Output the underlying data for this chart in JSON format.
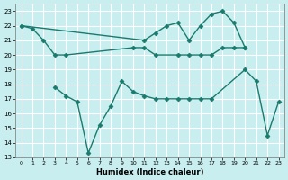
{
  "xlabel": "Humidex (Indice chaleur)",
  "color": "#1a7a6e",
  "bg_color": "#c8eef0",
  "grid_color": "#ffffff",
  "ylim": [
    13,
    23.5
  ],
  "xlim": [
    -0.5,
    23.5
  ],
  "yticks": [
    13,
    14,
    15,
    16,
    17,
    18,
    19,
    20,
    21,
    22,
    23
  ],
  "xticks": [
    0,
    1,
    2,
    3,
    4,
    5,
    6,
    7,
    8,
    9,
    10,
    11,
    12,
    13,
    14,
    15,
    16,
    17,
    18,
    19,
    20,
    21,
    22,
    23
  ],
  "marker": "D",
  "markersize": 2.5,
  "linewidth": 1.0,
  "series1_x": [
    0,
    1,
    2,
    3,
    4,
    10,
    11,
    12,
    14,
    15,
    16,
    17,
    18,
    19,
    20
  ],
  "series1_y": [
    22.0,
    21.8,
    21.0,
    20.0,
    20.0,
    20.5,
    20.5,
    20.0,
    20.0,
    20.0,
    20.0,
    20.0,
    20.5,
    20.5,
    20.5
  ],
  "series2_x": [
    0,
    11,
    12,
    13,
    14,
    15,
    16,
    17,
    18,
    19,
    20
  ],
  "series2_y": [
    22.0,
    21.0,
    21.5,
    22.0,
    22.2,
    21.0,
    22.0,
    22.8,
    23.0,
    22.2,
    20.5
  ],
  "series3_x": [
    3,
    4,
    5,
    6,
    7,
    8,
    9,
    10,
    11,
    12,
    13,
    14,
    15,
    16,
    17,
    20,
    21,
    22,
    23
  ],
  "series3_y": [
    17.8,
    17.2,
    16.8,
    13.3,
    15.2,
    16.5,
    18.2,
    17.5,
    17.2,
    17.0,
    17.0,
    17.0,
    17.0,
    17.0,
    17.0,
    19.0,
    18.2,
    14.5,
    16.8
  ]
}
